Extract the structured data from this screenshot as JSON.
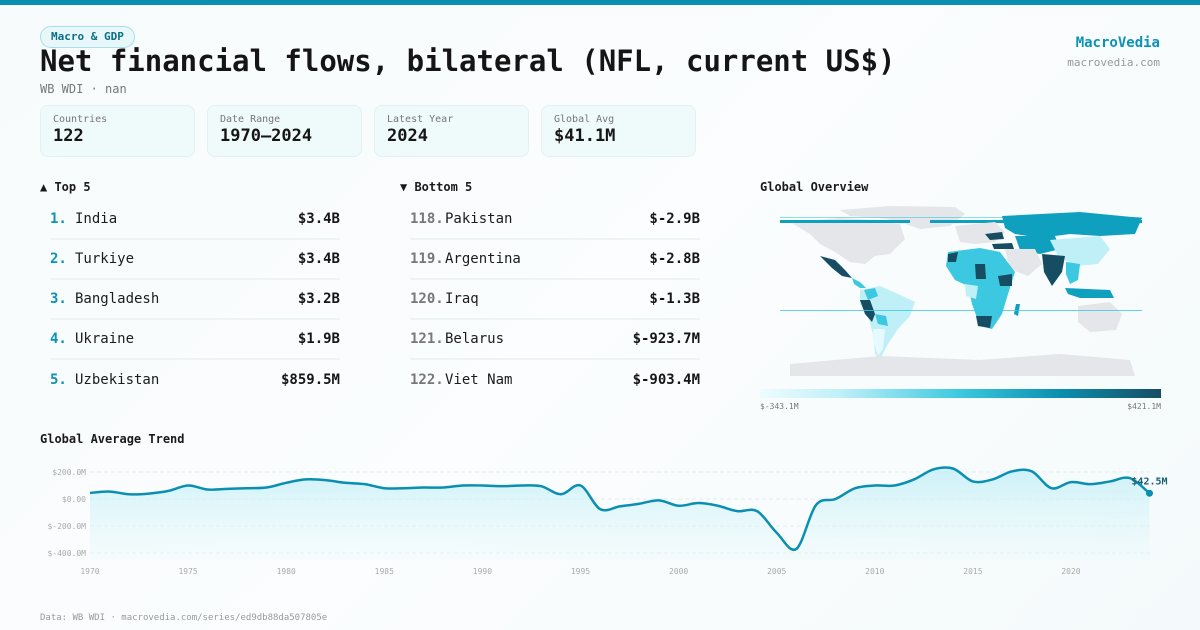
{
  "header": {
    "category_chip": "Macro & GDP",
    "title": "Net financial flows, bilateral (NFL, current US$)",
    "subtitle": "WB WDI · nan",
    "brand_name": "MacroVedia",
    "brand_url": "macrovedia.com"
  },
  "stats": [
    {
      "label": "Countries",
      "value": "122"
    },
    {
      "label": "Date Range",
      "value": "1970–2024"
    },
    {
      "label": "Latest Year",
      "value": "2024"
    },
    {
      "label": "Global Avg",
      "value": "$41.1M"
    }
  ],
  "top5": {
    "heading": "▲ Top 5",
    "items": [
      {
        "rank": "1.",
        "name": "India",
        "value": "$3.4B"
      },
      {
        "rank": "2.",
        "name": "Turkiye",
        "value": "$3.4B"
      },
      {
        "rank": "3.",
        "name": "Bangladesh",
        "value": "$3.2B"
      },
      {
        "rank": "4.",
        "name": "Ukraine",
        "value": "$1.9B"
      },
      {
        "rank": "5.",
        "name": "Uzbekistan",
        "value": "$859.5M"
      }
    ]
  },
  "bottom5": {
    "heading": "▼ Bottom 5",
    "items": [
      {
        "rank": "118.",
        "name": "Pakistan",
        "value": "$-2.9B"
      },
      {
        "rank": "119.",
        "name": "Argentina",
        "value": "$-2.8B"
      },
      {
        "rank": "120.",
        "name": "Iraq",
        "value": "$-1.3B"
      },
      {
        "rank": "121.",
        "name": "Belarus",
        "value": "$-923.7M"
      },
      {
        "rank": "122.",
        "name": "Viet Nam",
        "value": "$-903.4M"
      }
    ]
  },
  "map": {
    "title": "Global Overview",
    "legend_min": "$-343.1M",
    "legend_max": "$421.1M",
    "colors": {
      "no_data": "#e4e6e9",
      "very_low": "#e6f9fc",
      "low": "#bff0f8",
      "mid": "#3cc8e0",
      "high": "#0fa0c0",
      "very_high": "#164d63"
    }
  },
  "trend": {
    "title": "Global Average Trend",
    "last_label": "$42.5M",
    "line_color": "#0a8fb0"
  },
  "footer": {
    "source": "Data: WB WDI · macrovedia.com/series/ed9db88da507805e"
  },
  "chart_data": {
    "type": "line",
    "title": "Global Average Trend",
    "xlabel": "",
    "ylabel": "",
    "x": [
      1970,
      1971,
      1972,
      1973,
      1974,
      1975,
      1976,
      1977,
      1978,
      1979,
      1980,
      1981,
      1982,
      1983,
      1984,
      1985,
      1986,
      1987,
      1988,
      1989,
      1990,
      1991,
      1992,
      1993,
      1994,
      1995,
      1996,
      1997,
      1998,
      1999,
      2000,
      2001,
      2002,
      2003,
      2004,
      2005,
      2006,
      2007,
      2008,
      2009,
      2010,
      2011,
      2012,
      2013,
      2014,
      2015,
      2016,
      2017,
      2018,
      2019,
      2020,
      2021,
      2022,
      2023,
      2024
    ],
    "series": [
      {
        "name": "Global average",
        "values": [
          45,
          55,
          35,
          40,
          60,
          100,
          70,
          75,
          80,
          85,
          120,
          145,
          140,
          120,
          110,
          80,
          80,
          85,
          85,
          100,
          100,
          95,
          100,
          95,
          35,
          100,
          -75,
          -55,
          -35,
          -10,
          -50,
          -30,
          -50,
          -90,
          -90,
          -250,
          -370,
          -45,
          0,
          80,
          100,
          100,
          145,
          220,
          225,
          130,
          145,
          205,
          205,
          80,
          125,
          110,
          130,
          155,
          42.5
        ]
      }
    ],
    "yticks": [
      "$200.0M",
      "$0.00",
      "$-200.0M",
      "$-400.0M"
    ],
    "ytick_values": [
      200,
      0,
      -200,
      -400
    ],
    "xticks": [
      "1970",
      "1975",
      "1980",
      "1985",
      "1990",
      "1995",
      "2000",
      "2005",
      "2010",
      "2015",
      "2020"
    ],
    "ylim": [
      -480,
      260
    ],
    "grid": true,
    "annotations": [
      {
        "x": 2024,
        "label": "$42.5M"
      }
    ]
  }
}
